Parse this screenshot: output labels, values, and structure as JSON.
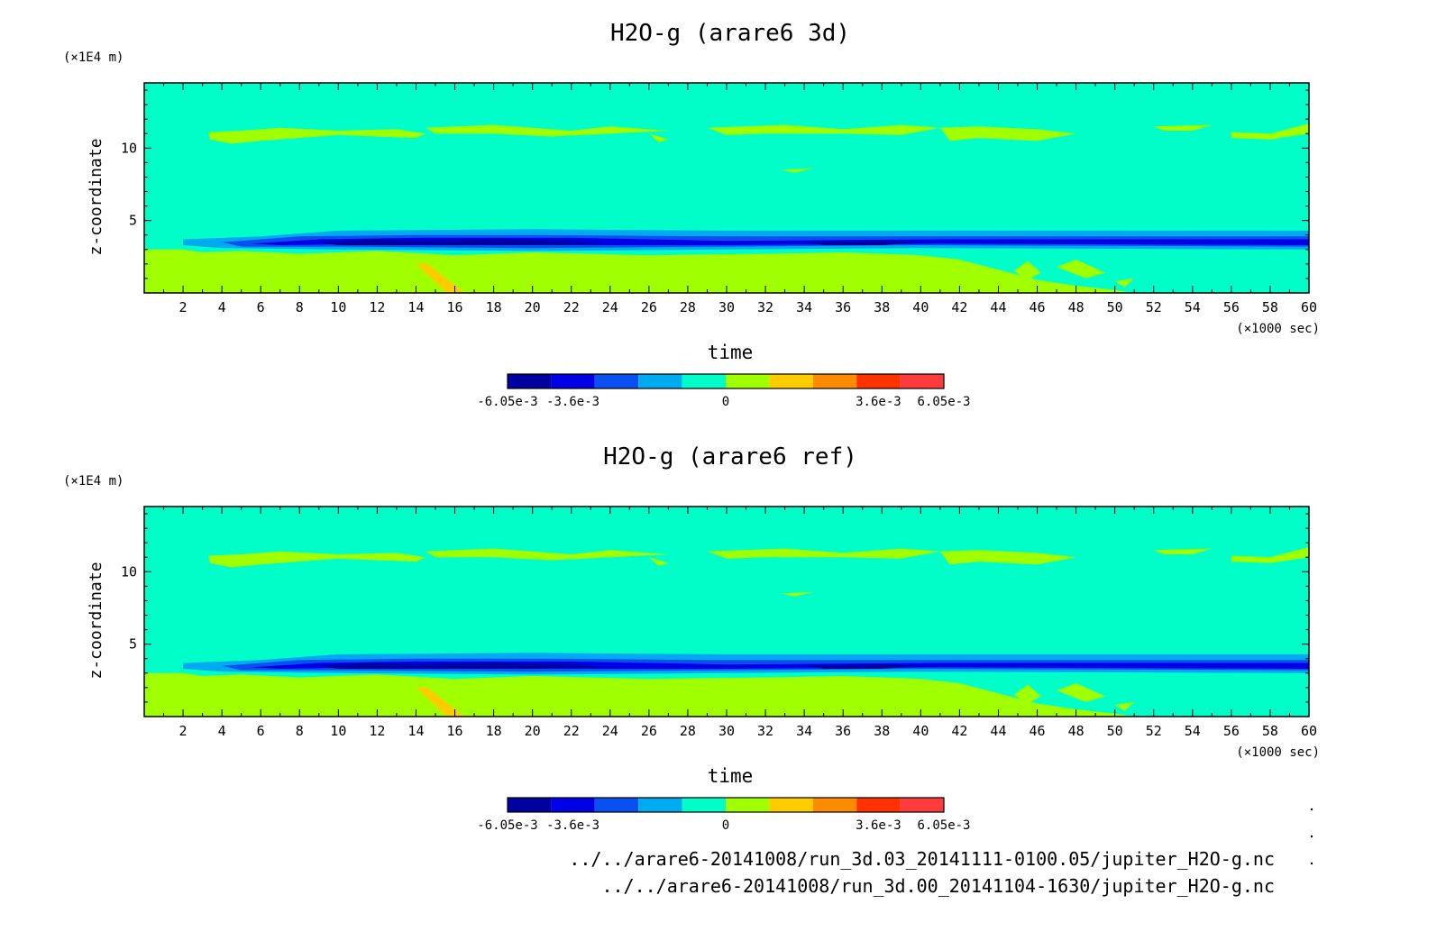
{
  "colors": {
    "background": "#00ffc8",
    "levels": [
      "#0000a0",
      "#0000e6",
      "#0a50f0",
      "#00aaf0",
      "#00ffc8",
      "#a0ff00",
      "#ffcc00",
      "#ff8c00",
      "#ff3200",
      "#ff3c3c"
    ]
  },
  "chart_data": [
    {
      "type": "heatmap",
      "title": "H2O-g (arare6 3d)",
      "xlabel": "time",
      "ylabel": "z-coordinate",
      "x_unit": "(×1000 sec)",
      "y_unit": "(×1E4 m)",
      "xlim": [
        0,
        60
      ],
      "ylim": [
        0,
        14.5
      ],
      "x_ticks": [
        "2",
        "4",
        "6",
        "8",
        "10",
        "12",
        "14",
        "16",
        "18",
        "20",
        "22",
        "24",
        "26",
        "28",
        "30",
        "32",
        "34",
        "36",
        "38",
        "40",
        "42",
        "44",
        "46",
        "48",
        "50",
        "52",
        "54",
        "56",
        "58",
        "60"
      ],
      "y_ticks": [
        "5",
        "10"
      ],
      "colorbar_labels": [
        "-6.05e-3",
        "-3.6e-3",
        "0",
        "3.6e-3",
        "6.05e-3"
      ]
    },
    {
      "type": "heatmap",
      "title": "H2O-g (arare6 ref)",
      "xlabel": "time",
      "ylabel": "z-coordinate",
      "x_unit": "(×1000 sec)",
      "y_unit": "(×1E4 m)",
      "xlim": [
        0,
        60
      ],
      "ylim": [
        0,
        14.5
      ],
      "x_ticks": [
        "2",
        "4",
        "6",
        "8",
        "10",
        "12",
        "14",
        "16",
        "18",
        "20",
        "22",
        "24",
        "26",
        "28",
        "30",
        "32",
        "34",
        "36",
        "38",
        "40",
        "42",
        "44",
        "46",
        "48",
        "50",
        "52",
        "54",
        "56",
        "58",
        "60"
      ],
      "y_ticks": [
        "5",
        "10"
      ],
      "colorbar_labels": [
        "-6.05e-3",
        "-3.6e-3",
        "0",
        "3.6e-3",
        "6.05e-3"
      ]
    }
  ],
  "files": [
    "../../arare6-20141008/run_3d.03_20141111-0100.05/jupiter_H2O-g.nc",
    "../../arare6-20141008/run_3d.00_20141104-1630/jupiter_H2O-g.nc"
  ]
}
